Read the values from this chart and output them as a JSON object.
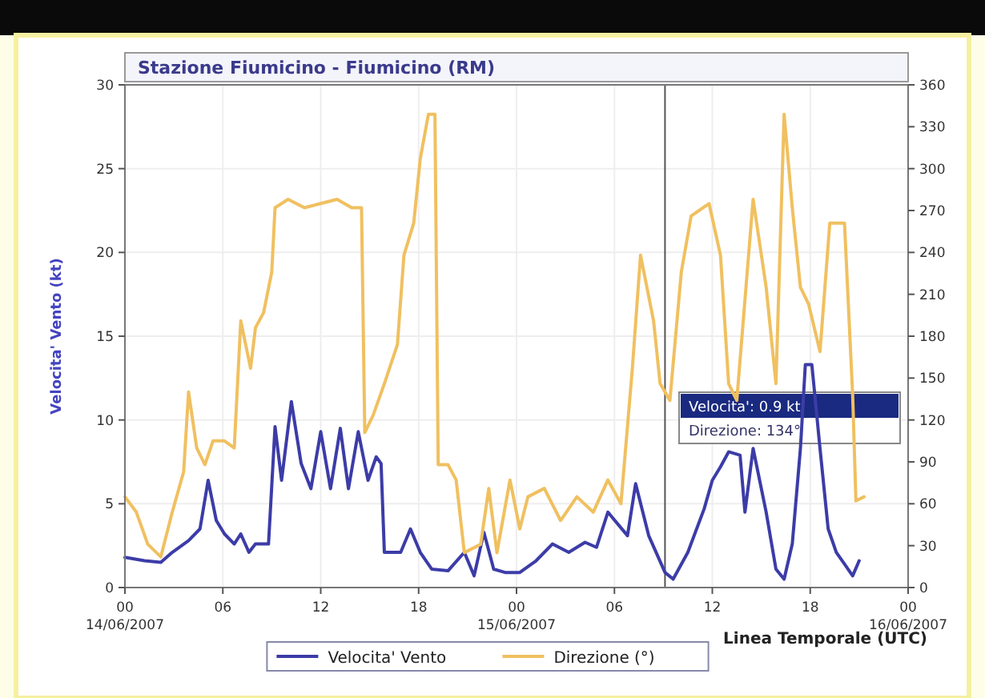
{
  "chart_data": {
    "type": "line",
    "title": "Stazione Fiumicino - Fiumicino (RM)",
    "xlabel": "Linea Temporale (UTC)",
    "ylabel": "Velocita' Vento (kt)",
    "xlim": [
      "2007-06-14T00:00",
      "2007-06-16T00:00"
    ],
    "xticks": [
      {
        "value": "2007-06-14T00:00",
        "label": "00\n14/06/2007"
      },
      {
        "value": "2007-06-14T06:00",
        "label": "06"
      },
      {
        "value": "2007-06-14T12:00",
        "label": "12"
      },
      {
        "value": "2007-06-14T18:00",
        "label": "18"
      },
      {
        "value": "2007-06-15T00:00",
        "label": "00\n15/06/2007"
      },
      {
        "value": "2007-06-15T06:00",
        "label": "06"
      },
      {
        "value": "2007-06-15T12:00",
        "label": "12"
      },
      {
        "value": "2007-06-15T18:00",
        "label": "18"
      },
      {
        "value": "2007-06-16T00:00",
        "label": "00\n16/06/2007"
      }
    ],
    "ylim": [
      0,
      30
    ],
    "yticks": [
      0,
      5,
      10,
      15,
      20,
      25,
      30
    ],
    "y2lim": [
      0,
      360
    ],
    "y2ticks": [
      0,
      30,
      60,
      90,
      120,
      150,
      180,
      210,
      240,
      270,
      300,
      330,
      360
    ],
    "grid": true,
    "legend": "bottom",
    "marker": "none",
    "line_style": "solid",
    "ref_lines": [
      {
        "axis": "x",
        "value": "2007-06-15T09:06",
        "color": "#555555"
      }
    ],
    "annotations": [
      "Velocita': 0.9 kt",
      "Direzione: 134°"
    ],
    "series": [
      {
        "name": "Velocita' Vento",
        "color": "#3c3ca8",
        "x": [
          "2007-06-14T00:00",
          "2007-06-14T01:12",
          "2007-06-14T02:12",
          "2007-06-14T02:54",
          "2007-06-14T03:54",
          "2007-06-14T04:36",
          "2007-06-14T05:06",
          "2007-06-14T05:36",
          "2007-06-14T06:06",
          "2007-06-14T06:42",
          "2007-06-14T07:06",
          "2007-06-14T07:36",
          "2007-06-14T08:00",
          "2007-06-14T08:48",
          "2007-06-14T09:12",
          "2007-06-14T09:36",
          "2007-06-14T10:12",
          "2007-06-14T10:48",
          "2007-06-14T11:24",
          "2007-06-14T12:00",
          "2007-06-14T12:36",
          "2007-06-14T13:12",
          "2007-06-14T13:42",
          "2007-06-14T14:18",
          "2007-06-14T14:54",
          "2007-06-14T15:24",
          "2007-06-14T15:42",
          "2007-06-14T15:54",
          "2007-06-14T16:54",
          "2007-06-14T17:30",
          "2007-06-14T18:06",
          "2007-06-14T18:48",
          "2007-06-14T19:48",
          "2007-06-14T20:48",
          "2007-06-14T21:24",
          "2007-06-14T22:00",
          "2007-06-14T22:36",
          "2007-06-14T23:18",
          "2007-06-15T00:12",
          "2007-06-15T01:12",
          "2007-06-15T02:12",
          "2007-06-15T03:12",
          "2007-06-15T04:12",
          "2007-06-15T04:54",
          "2007-06-15T05:36",
          "2007-06-15T06:48",
          "2007-06-15T07:18",
          "2007-06-15T08:06",
          "2007-06-15T09:06",
          "2007-06-15T09:36",
          "2007-06-15T10:30",
          "2007-06-15T11:30",
          "2007-06-15T12:00",
          "2007-06-15T12:30",
          "2007-06-15T13:00",
          "2007-06-15T13:42",
          "2007-06-15T14:00",
          "2007-06-15T14:30",
          "2007-06-15T15:18",
          "2007-06-15T15:54",
          "2007-06-15T16:24",
          "2007-06-15T16:54",
          "2007-06-15T17:24",
          "2007-06-15T17:42",
          "2007-06-15T18:06",
          "2007-06-15T18:36",
          "2007-06-15T19:06",
          "2007-06-15T19:36",
          "2007-06-15T20:06",
          "2007-06-15T20:36",
          "2007-06-15T21:00"
        ],
        "values": [
          1.8,
          1.6,
          1.5,
          2.1,
          2.8,
          3.5,
          6.4,
          4.0,
          3.2,
          2.6,
          3.2,
          2.1,
          2.6,
          2.6,
          9.6,
          6.4,
          11.1,
          7.4,
          5.9,
          9.3,
          5.9,
          9.5,
          5.9,
          9.3,
          6.4,
          7.8,
          7.4,
          2.1,
          2.1,
          3.5,
          2.1,
          1.1,
          1.0,
          2.1,
          0.7,
          3.3,
          1.1,
          0.9,
          0.9,
          1.6,
          2.6,
          2.1,
          2.7,
          2.4,
          4.5,
          3.1,
          6.2,
          3.1,
          0.9,
          0.5,
          2.1,
          4.7,
          6.4,
          7.2,
          8.1,
          7.9,
          4.5,
          8.3,
          4.5,
          1.1,
          0.5,
          2.6,
          8.3,
          13.3,
          13.3,
          8.3,
          3.5,
          2.1,
          1.4,
          0.7,
          1.6
        ]
      },
      {
        "name": "Direzione (°)",
        "color": "#f0c060",
        "axis": "y2",
        "x": [
          "2007-06-14T00:00",
          "2007-06-14T00:42",
          "2007-06-14T01:24",
          "2007-06-14T02:12",
          "2007-06-14T02:54",
          "2007-06-14T03:36",
          "2007-06-14T03:54",
          "2007-06-14T04:24",
          "2007-06-14T04:54",
          "2007-06-14T05:24",
          "2007-06-14T06:06",
          "2007-06-14T06:42",
          "2007-06-14T07:06",
          "2007-06-14T07:42",
          "2007-06-14T08:00",
          "2007-06-14T08:30",
          "2007-06-14T09:00",
          "2007-06-14T09:12",
          "2007-06-14T10:00",
          "2007-06-14T11:00",
          "2007-06-14T12:00",
          "2007-06-14T13:00",
          "2007-06-14T13:54",
          "2007-06-14T14:30",
          "2007-06-14T14:42",
          "2007-06-14T15:12",
          "2007-06-14T15:54",
          "2007-06-14T16:42",
          "2007-06-14T17:06",
          "2007-06-14T17:42",
          "2007-06-14T18:06",
          "2007-06-14T18:36",
          "2007-06-14T19:00",
          "2007-06-14T19:12",
          "2007-06-14T19:48",
          "2007-06-14T20:18",
          "2007-06-14T20:48",
          "2007-06-14T21:48",
          "2007-06-14T22:18",
          "2007-06-14T22:48",
          "2007-06-14T23:36",
          "2007-06-15T00:12",
          "2007-06-15T00:42",
          "2007-06-15T01:42",
          "2007-06-15T02:42",
          "2007-06-15T03:42",
          "2007-06-15T04:42",
          "2007-06-15T05:36",
          "2007-06-15T06:24",
          "2007-06-15T07:06",
          "2007-06-15T07:36",
          "2007-06-15T08:24",
          "2007-06-15T08:48",
          "2007-06-15T09:24",
          "2007-06-15T10:06",
          "2007-06-15T10:42",
          "2007-06-15T11:48",
          "2007-06-15T12:30",
          "2007-06-15T13:00",
          "2007-06-15T13:30",
          "2007-06-15T14:30",
          "2007-06-15T15:18",
          "2007-06-15T15:54",
          "2007-06-15T16:24",
          "2007-06-15T16:54",
          "2007-06-15T17:24",
          "2007-06-15T17:54",
          "2007-06-15T18:36",
          "2007-06-15T19:12",
          "2007-06-15T20:06",
          "2007-06-15T20:36",
          "2007-06-15T20:48",
          "2007-06-15T21:18"
        ],
        "values": [
          65,
          54,
          31,
          22,
          54,
          83,
          140,
          100,
          88,
          105,
          105,
          100,
          191,
          157,
          186,
          197,
          226,
          272,
          278,
          272,
          275,
          278,
          272,
          272,
          111,
          123,
          146,
          174,
          238,
          261,
          307,
          339,
          339,
          88,
          88,
          77,
          25,
          31,
          71,
          25,
          77,
          42,
          65,
          71,
          48,
          65,
          54,
          77,
          60,
          157,
          238,
          191,
          146,
          134,
          226,
          266,
          275,
          238,
          146,
          134,
          278,
          215,
          146,
          339,
          272,
          215,
          203,
          169,
          261,
          261,
          138,
          62,
          65
        ]
      }
    ]
  }
}
